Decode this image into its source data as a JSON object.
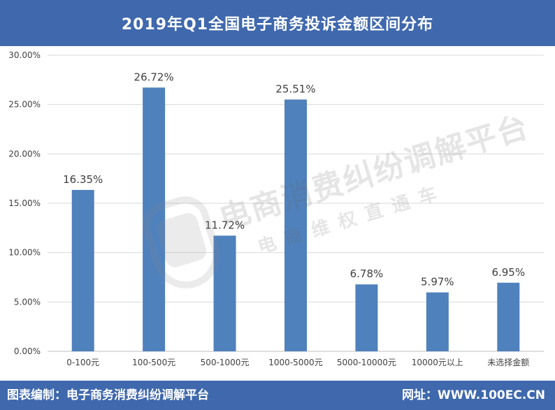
{
  "header": {
    "title": "2019年Q1全国电子商务投诉金额区间分布"
  },
  "watermark": {
    "line1": "电商消费纠纷调解平台",
    "line2": "电商维权直通车"
  },
  "footer": {
    "left_text": "图表编制：电子商务消费纠纷调解平台",
    "right_text": "网址：WWW.100EC.CN"
  },
  "colors": {
    "bar": "#4f81bd",
    "title_bg": "#3f68ad",
    "grid": "#d9d9d9",
    "axis_text": "#404040"
  },
  "chart_data": {
    "type": "bar",
    "categories": [
      "0-100元",
      "100-500元",
      "500-1000元",
      "1000-5000元",
      "5000-10000元",
      "10000元以上",
      "未选择金额"
    ],
    "values": [
      16.35,
      26.72,
      11.72,
      25.51,
      6.78,
      5.97,
      6.95
    ],
    "value_labels": [
      "16.35%",
      "26.72%",
      "11.72%",
      "25.51%",
      "6.78%",
      "5.97%",
      "6.95%"
    ],
    "yticks": [
      "0.00%",
      "5.00%",
      "10.00%",
      "15.00%",
      "20.00%",
      "25.00%",
      "30.00%"
    ],
    "ylim": [
      0,
      30
    ],
    "grid": true
  }
}
